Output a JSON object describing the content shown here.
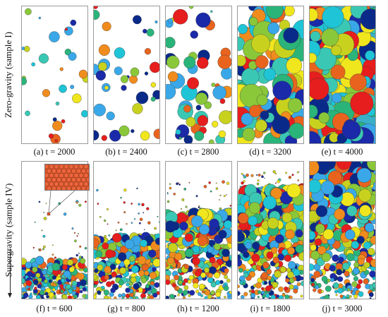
{
  "row_labels": {
    "top": "Zero-gravity (sample I)",
    "bottom": "Supergravity (sample IV)"
  },
  "panels": [
    {
      "id": "a",
      "caption": "(a) t = 2000",
      "row": "top",
      "fill_fraction": 0.25,
      "mode": "sparse"
    },
    {
      "id": "b",
      "caption": "(b) t = 2400",
      "row": "top",
      "fill_fraction": 0.38,
      "mode": "sparse"
    },
    {
      "id": "c",
      "caption": "(c) t = 2800",
      "row": "top",
      "fill_fraction": 0.62,
      "mode": "sparse"
    },
    {
      "id": "d",
      "caption": "(d) t = 3200",
      "row": "top",
      "fill_fraction": 0.85,
      "mode": "dense"
    },
    {
      "id": "e",
      "caption": "(e) t = 4000",
      "row": "top",
      "fill_fraction": 1.0,
      "mode": "full"
    },
    {
      "id": "f",
      "caption": "(f) t = 600",
      "row": "bottom",
      "settled_fraction": 0.28,
      "mode": "settle"
    },
    {
      "id": "g",
      "caption": "(g) t = 800",
      "row": "bottom",
      "settled_fraction": 0.45,
      "mode": "settle"
    },
    {
      "id": "h",
      "caption": "(h) t = 1200",
      "row": "bottom",
      "settled_fraction": 0.62,
      "mode": "settle"
    },
    {
      "id": "i",
      "caption": "(i) t = 1800",
      "row": "bottom",
      "settled_fraction": 0.8,
      "mode": "settle"
    },
    {
      "id": "j",
      "caption": "(j) t = 3000",
      "row": "bottom",
      "settled_fraction": 1.0,
      "mode": "settle"
    }
  ],
  "grain_palette": [
    "#1fc4d6",
    "#e61e1e",
    "#1a2aa8",
    "#f0e61e",
    "#3aa8e8",
    "#e8641e",
    "#8ac83a",
    "#2ab47a",
    "#c8d21e",
    "#3ac8b4",
    "#0a2a8a",
    "#f08c1e"
  ],
  "inset_color": "#e8501e"
}
